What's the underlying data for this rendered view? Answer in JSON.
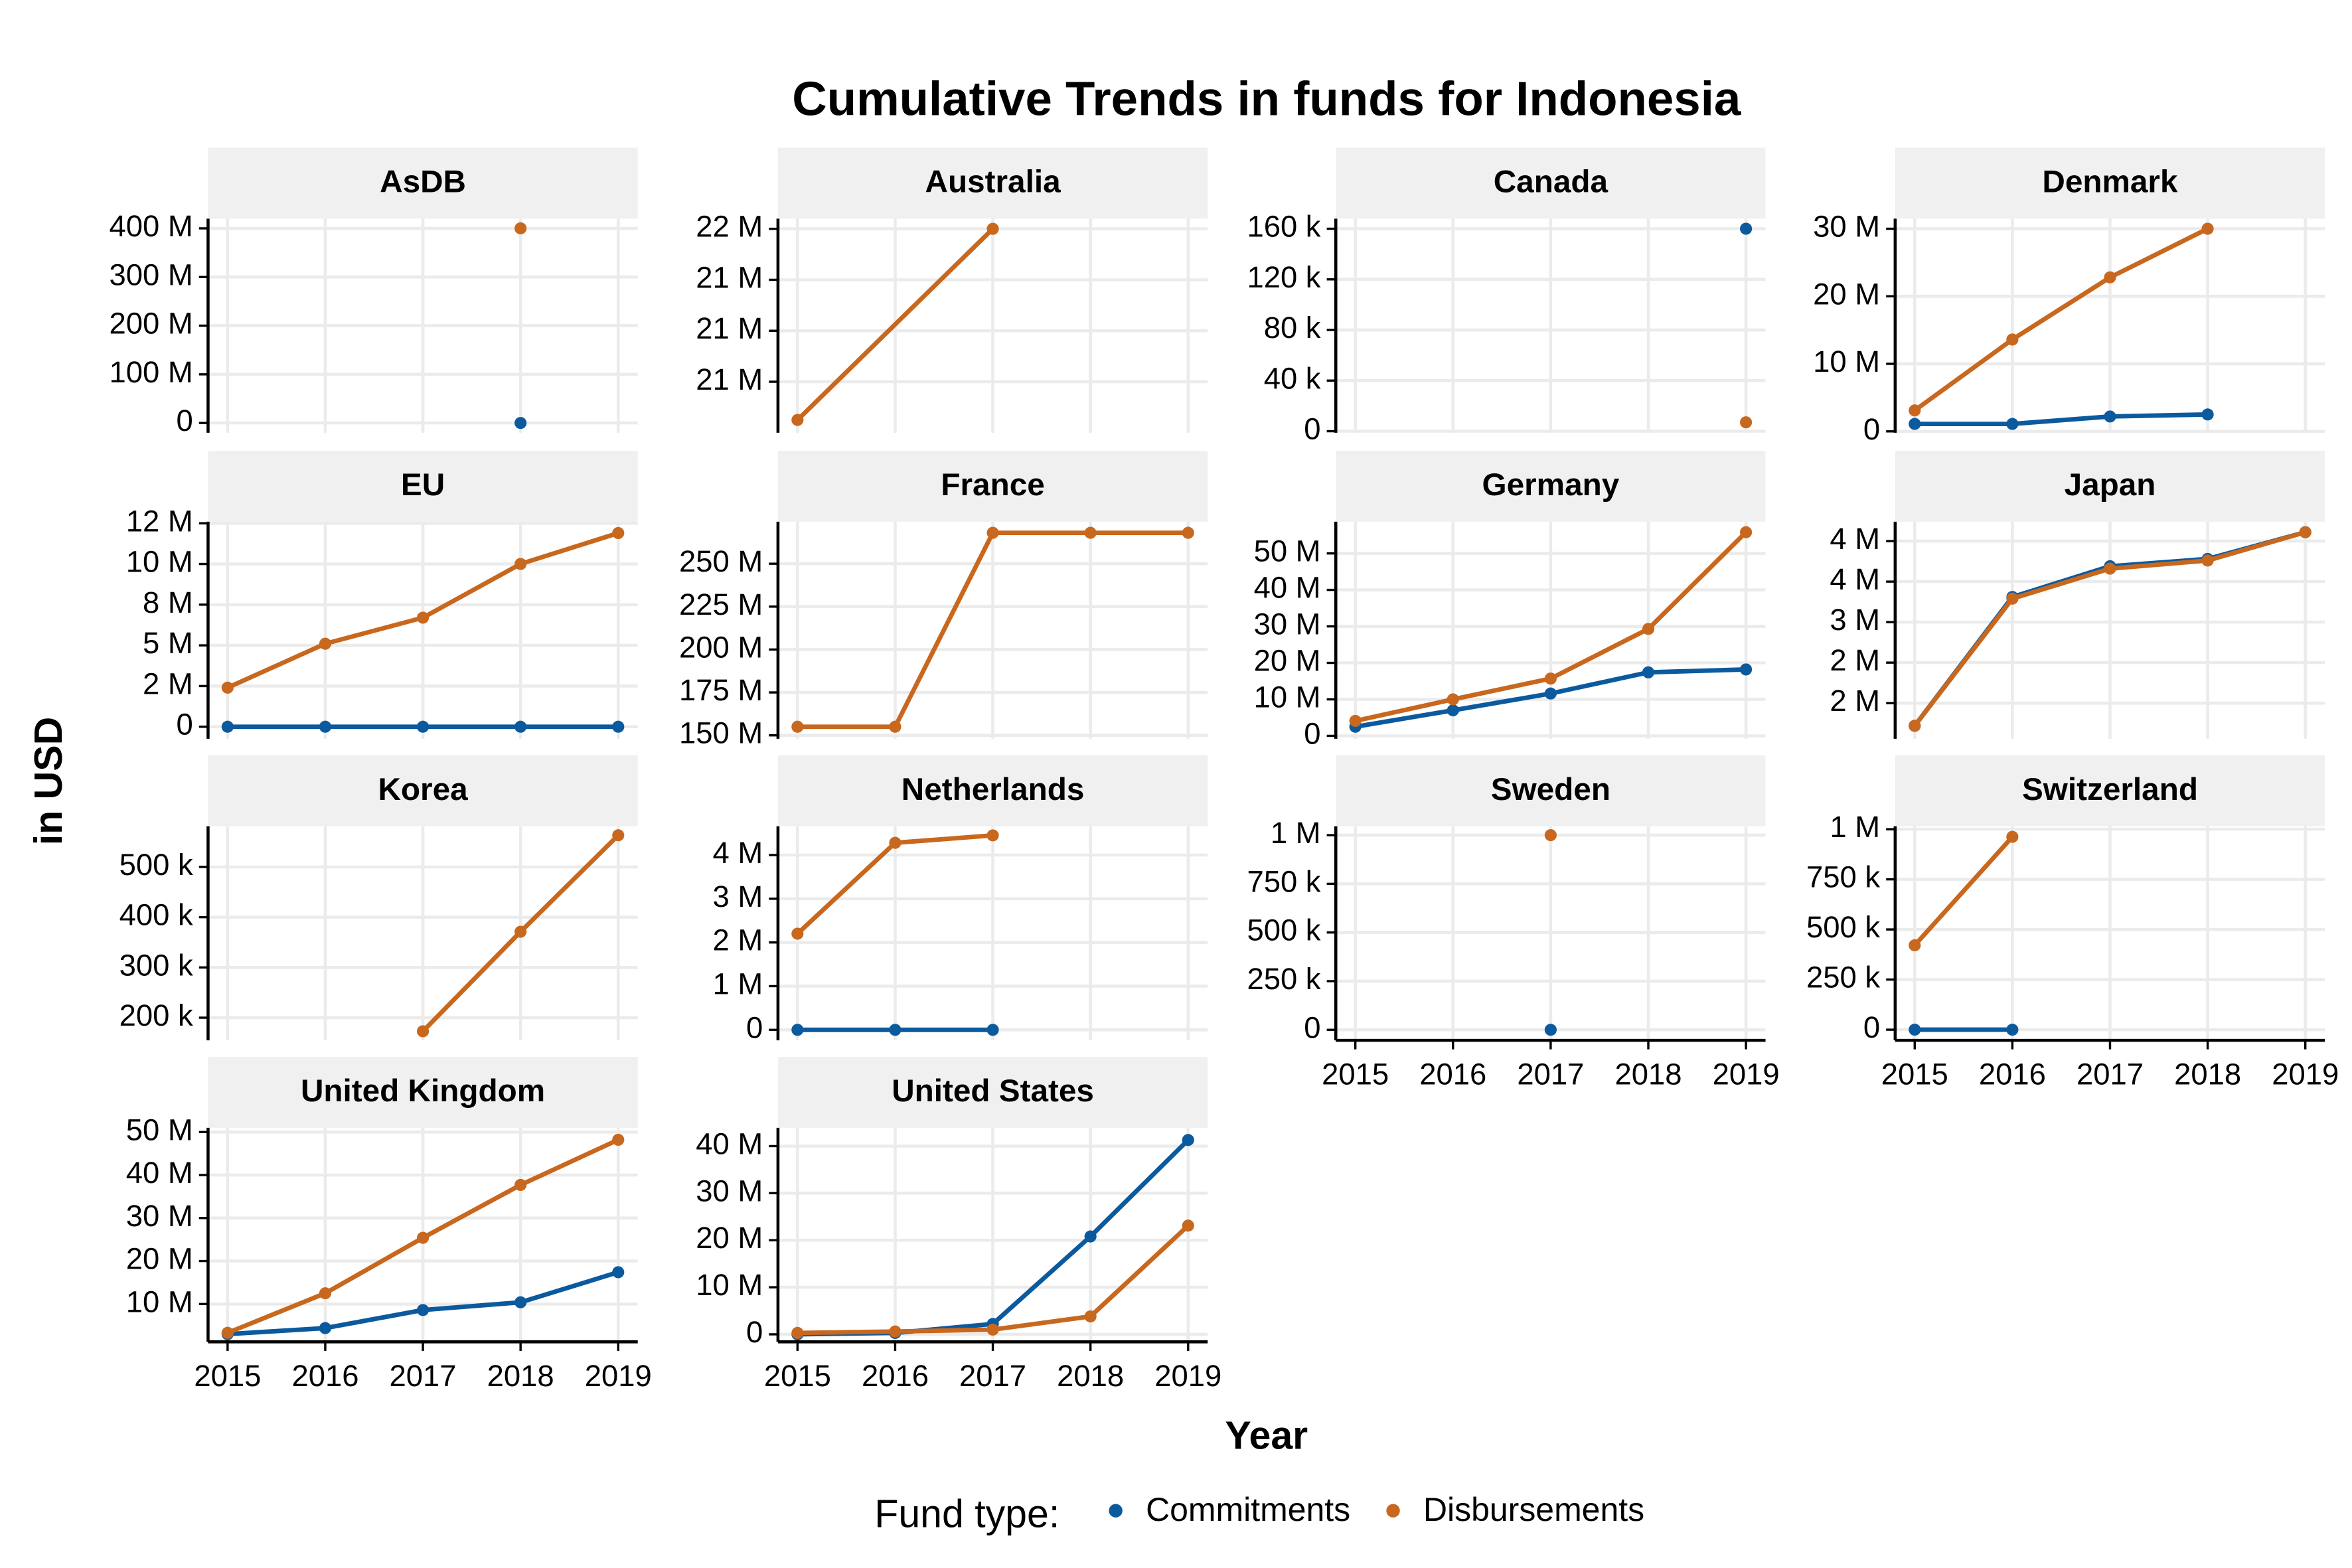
{
  "title": "Cumulative Trends in funds for Indonesia",
  "x_label": "Year",
  "y_label": "in USD",
  "legend_title": "Fund type:",
  "chart_data": [
    {
      "type": "line",
      "title": "AsDB",
      "x": [
        2018
      ],
      "xlim": [
        2014.8,
        2019.2
      ],
      "xticks": [
        2015,
        2016,
        2017,
        2018,
        2019
      ],
      "grid": true,
      "ylim": [
        -20000000,
        420000000
      ],
      "yticks": [
        0,
        {
          "value": 100000000,
          "label": "100 M"
        },
        {
          "value": 200000000,
          "label": "200 M"
        },
        {
          "value": 300000000,
          "label": "300 M"
        },
        {
          "value": 400000000,
          "label": "400 M"
        }
      ],
      "series": [
        {
          "name": "Commitments",
          "color": "#0c5a9e",
          "values": [
            0
          ]
        },
        {
          "name": "Disbursements",
          "color": "#c8681e",
          "values": [
            400000000
          ]
        }
      ]
    },
    {
      "type": "line",
      "title": "Australia",
      "x": [
        2015,
        2017
      ],
      "xlim": [
        2014.8,
        2019.2
      ],
      "xticks": [
        2015,
        2016,
        2017,
        2018,
        2019
      ],
      "grid": true,
      "ylim": [
        20700000,
        21540000
      ],
      "yticks": [
        {
          "value": 20900000,
          "label": "21 M"
        },
        {
          "value": 21100000,
          "label": "21 M"
        },
        {
          "value": 21300000,
          "label": "21 M"
        },
        {
          "value": 21500000,
          "label": "22 M"
        }
      ],
      "series": [
        {
          "name": "Disbursements",
          "color": "#c8681e",
          "values": [
            20750000,
            21500000
          ]
        }
      ]
    },
    {
      "type": "line",
      "title": "Canada",
      "x": [
        2019
      ],
      "xlim": [
        2014.8,
        2019.2
      ],
      "xticks": [
        2015,
        2016,
        2017,
        2018,
        2019
      ],
      "grid": true,
      "ylim": [
        -1200,
        168000
      ],
      "yticks": [
        0,
        {
          "value": 40000,
          "label": "40 k"
        },
        {
          "value": 80000,
          "label": "80 k"
        },
        {
          "value": 120000,
          "label": "120 k"
        },
        {
          "value": 160000,
          "label": "160 k"
        }
      ],
      "series": [
        {
          "name": "Commitments",
          "color": "#0c5a9e",
          "values": [
            160000
          ]
        },
        {
          "name": "Disbursements",
          "color": "#c8681e",
          "values": [
            7000
          ]
        }
      ]
    },
    {
      "type": "line",
      "title": "Denmark",
      "x": [
        2015,
        2016,
        2017,
        2018
      ],
      "xlim": [
        2014.8,
        2019.2
      ],
      "xticks": [
        2015,
        2016,
        2017,
        2018,
        2019
      ],
      "grid": true,
      "ylim": [
        -200000,
        31500000
      ],
      "yticks": [
        0,
        {
          "value": 10000000,
          "label": "10 M"
        },
        {
          "value": 20000000,
          "label": "20 M"
        },
        {
          "value": 30000000,
          "label": "30 M"
        }
      ],
      "series": [
        {
          "name": "Commitments",
          "color": "#0c5a9e",
          "values": [
            1100000,
            1100000,
            2200000,
            2500000
          ]
        },
        {
          "name": "Disbursements",
          "color": "#c8681e",
          "values": [
            3100000,
            13600000,
            22800000,
            30000000
          ]
        }
      ]
    },
    {
      "type": "line",
      "title": "EU",
      "x": [
        2015,
        2016,
        2017,
        2018,
        2019
      ],
      "xlim": [
        2014.8,
        2019.2
      ],
      "xticks": [
        2015,
        2016,
        2017,
        2018,
        2019
      ],
      "grid": true,
      "ylim": [
        -740000,
        12600000
      ],
      "yticks": [
        0,
        {
          "value": 2500000,
          "label": "2 M"
        },
        {
          "value": 5000000,
          "label": "5 M"
        },
        {
          "value": 7500000,
          "label": "8 M"
        },
        {
          "value": 10000000,
          "label": "10 M"
        },
        {
          "value": 12500000,
          "label": "12 M"
        }
      ],
      "series": [
        {
          "name": "Commitments",
          "color": "#0c5a9e",
          "values": [
            0,
            0,
            0,
            0,
            0
          ]
        },
        {
          "name": "Disbursements",
          "color": "#c8681e",
          "values": [
            2400000,
            5100000,
            6700000,
            10000000,
            11900000
          ]
        }
      ]
    },
    {
      "type": "line",
      "title": "France",
      "x": [
        2015,
        2016,
        2017,
        2018,
        2019
      ],
      "xlim": [
        2014.8,
        2019.2
      ],
      "xticks": [
        2015,
        2016,
        2017,
        2018,
        2019
      ],
      "grid": true,
      "ylim": [
        148000000,
        274500000
      ],
      "yticks": [
        {
          "value": 150000000,
          "label": "150 M"
        },
        {
          "value": 175000000,
          "label": "175 M"
        },
        {
          "value": 200000000,
          "label": "200 M"
        },
        {
          "value": 225000000,
          "label": "225 M"
        },
        {
          "value": 250000000,
          "label": "250 M"
        }
      ],
      "series": [
        {
          "name": "Disbursements",
          "color": "#c8681e",
          "values": [
            155000000,
            155000000,
            268000000,
            268000000,
            268000000
          ]
        }
      ]
    },
    {
      "type": "line",
      "title": "Germany",
      "x": [
        2015,
        2016,
        2017,
        2018,
        2019
      ],
      "xlim": [
        2014.8,
        2019.2
      ],
      "xticks": [
        2015,
        2016,
        2017,
        2018,
        2019
      ],
      "grid": true,
      "ylim": [
        -800000,
        58700000
      ],
      "yticks": [
        0,
        {
          "value": 10000000,
          "label": "10 M"
        },
        {
          "value": 20000000,
          "label": "20 M"
        },
        {
          "value": 30000000,
          "label": "30 M"
        },
        {
          "value": 40000000,
          "label": "40 M"
        },
        {
          "value": 50000000,
          "label": "50 M"
        }
      ],
      "series": [
        {
          "name": "Commitments",
          "color": "#0c5a9e",
          "values": [
            2500000,
            7000000,
            11600000,
            17400000,
            18200000
          ]
        },
        {
          "name": "Disbursements",
          "color": "#c8681e",
          "values": [
            4100000,
            10000000,
            15700000,
            29300000,
            55800000
          ]
        }
      ]
    },
    {
      "type": "line",
      "title": "Japan",
      "x": [
        2015,
        2016,
        2017,
        2018,
        2019
      ],
      "xlim": [
        2014.8,
        2019.2
      ],
      "xticks": [
        2015,
        2016,
        2017,
        2018,
        2019
      ],
      "grid": true,
      "ylim": [
        1560000,
        4240000
      ],
      "yticks": [
        {
          "value": 2000000,
          "label": "2 M"
        },
        {
          "value": 2500000,
          "label": "2 M"
        },
        {
          "value": 3000000,
          "label": "3 M"
        },
        {
          "value": 3500000,
          "label": "4 M"
        },
        {
          "value": 4000000,
          "label": "4 M"
        }
      ],
      "series": [
        {
          "name": "Commitments",
          "color": "#0c5a9e",
          "values": [
            1720000,
            3310000,
            3690000,
            3780000,
            4110000
          ]
        },
        {
          "name": "Disbursements",
          "color": "#c8681e",
          "values": [
            1720000,
            3290000,
            3660000,
            3760000,
            4110000
          ]
        }
      ]
    },
    {
      "type": "line",
      "title": "Korea",
      "x": [
        2017,
        2018,
        2019
      ],
      "xlim": [
        2014.8,
        2019.2
      ],
      "xticks": [
        2015,
        2016,
        2017,
        2018,
        2019
      ],
      "grid": true,
      "ylim": [
        155000,
        581000
      ],
      "yticks": [
        {
          "value": 200000,
          "label": "200 k"
        },
        {
          "value": 300000,
          "label": "300 k"
        },
        {
          "value": 400000,
          "label": "400 k"
        },
        {
          "value": 500000,
          "label": "500 k"
        }
      ],
      "series": [
        {
          "name": "Disbursements",
          "color": "#c8681e",
          "values": [
            173000,
            371000,
            563000
          ]
        }
      ]
    },
    {
      "type": "line",
      "title": "Netherlands",
      "x": [
        2015,
        2016,
        2017
      ],
      "xlim": [
        2014.8,
        2019.2
      ],
      "xticks": [
        2015,
        2016,
        2017,
        2018,
        2019
      ],
      "grid": true,
      "ylim": [
        -240000,
        4660000
      ],
      "yticks": [
        0,
        {
          "value": 1000000,
          "label": "1 M"
        },
        {
          "value": 2000000,
          "label": "2 M"
        },
        {
          "value": 3000000,
          "label": "3 M"
        },
        {
          "value": 4000000,
          "label": "4 M"
        }
      ],
      "series": [
        {
          "name": "Commitments",
          "color": "#0c5a9e",
          "values": [
            0,
            0,
            0
          ]
        },
        {
          "name": "Disbursements",
          "color": "#c8681e",
          "values": [
            2200000,
            4280000,
            4450000
          ]
        }
      ]
    },
    {
      "type": "line",
      "title": "Sweden",
      "x": [
        2017
      ],
      "xlim": [
        2014.8,
        2019.2
      ],
      "xticks": [
        2015,
        2016,
        2017,
        2018,
        2019
      ],
      "grid": true,
      "ylim": [
        -54000,
        1046000
      ],
      "yticks": [
        0,
        {
          "value": 250000,
          "label": "250 k"
        },
        {
          "value": 500000,
          "label": "500 k"
        },
        {
          "value": 750000,
          "label": "750 k"
        },
        {
          "value": 1000000,
          "label": "1 M"
        }
      ],
      "series": [
        {
          "name": "Commitments",
          "color": "#0c5a9e",
          "values": [
            0
          ]
        },
        {
          "name": "Disbursements",
          "color": "#c8681e",
          "values": [
            1000000
          ]
        }
      ]
    },
    {
      "type": "line",
      "title": "Switzerland",
      "x": [
        2015,
        2016
      ],
      "xlim": [
        2014.8,
        2019.2
      ],
      "xticks": [
        2015,
        2016,
        2017,
        2018,
        2019
      ],
      "grid": true,
      "ylim": [
        -53000,
        1015000
      ],
      "yticks": [
        0,
        {
          "value": 250000,
          "label": "250 k"
        },
        {
          "value": 500000,
          "label": "500 k"
        },
        {
          "value": 750000,
          "label": "750 k"
        },
        {
          "value": 1000000,
          "label": "1 M"
        }
      ],
      "series": [
        {
          "name": "Commitments",
          "color": "#0c5a9e",
          "values": [
            0,
            0
          ]
        },
        {
          "name": "Disbursements",
          "color": "#c8681e",
          "values": [
            421000,
            962000
          ]
        }
      ]
    },
    {
      "type": "line",
      "title": "United Kingdom",
      "x": [
        2015,
        2016,
        2017,
        2018,
        2019
      ],
      "xlim": [
        2014.8,
        2019.2
      ],
      "xticks": [
        2015,
        2016,
        2017,
        2018,
        2019
      ],
      "grid": true,
      "ylim": [
        1200000,
        51000000
      ],
      "yticks": [
        {
          "value": 10000000,
          "label": "10 M"
        },
        {
          "value": 20000000,
          "label": "20 M"
        },
        {
          "value": 30000000,
          "label": "30 M"
        },
        {
          "value": 40000000,
          "label": "40 M"
        },
        {
          "value": 50000000,
          "label": "50 M"
        }
      ],
      "series": [
        {
          "name": "Commitments",
          "color": "#0c5a9e",
          "values": [
            3000000,
            4400000,
            8600000,
            10400000,
            17400000
          ]
        },
        {
          "name": "Disbursements",
          "color": "#c8681e",
          "values": [
            3300000,
            12500000,
            25400000,
            37700000,
            48200000
          ]
        }
      ]
    },
    {
      "type": "line",
      "title": "United States",
      "x": [
        2015,
        2016,
        2017,
        2018,
        2019
      ],
      "xlim": [
        2014.8,
        2019.2
      ],
      "xticks": [
        2015,
        2016,
        2017,
        2018,
        2019
      ],
      "grid": true,
      "ylim": [
        -1600000,
        43900000
      ],
      "yticks": [
        0,
        {
          "value": 10000000,
          "label": "10 M"
        },
        {
          "value": 20000000,
          "label": "20 M"
        },
        {
          "value": 30000000,
          "label": "30 M"
        },
        {
          "value": 40000000,
          "label": "40 M"
        }
      ],
      "series": [
        {
          "name": "Commitments",
          "color": "#0c5a9e",
          "values": [
            0,
            300000,
            2200000,
            20800000,
            41300000
          ]
        },
        {
          "name": "Disbursements",
          "color": "#c8681e",
          "values": [
            300000,
            600000,
            1000000,
            3800000,
            23100000
          ]
        }
      ]
    }
  ]
}
